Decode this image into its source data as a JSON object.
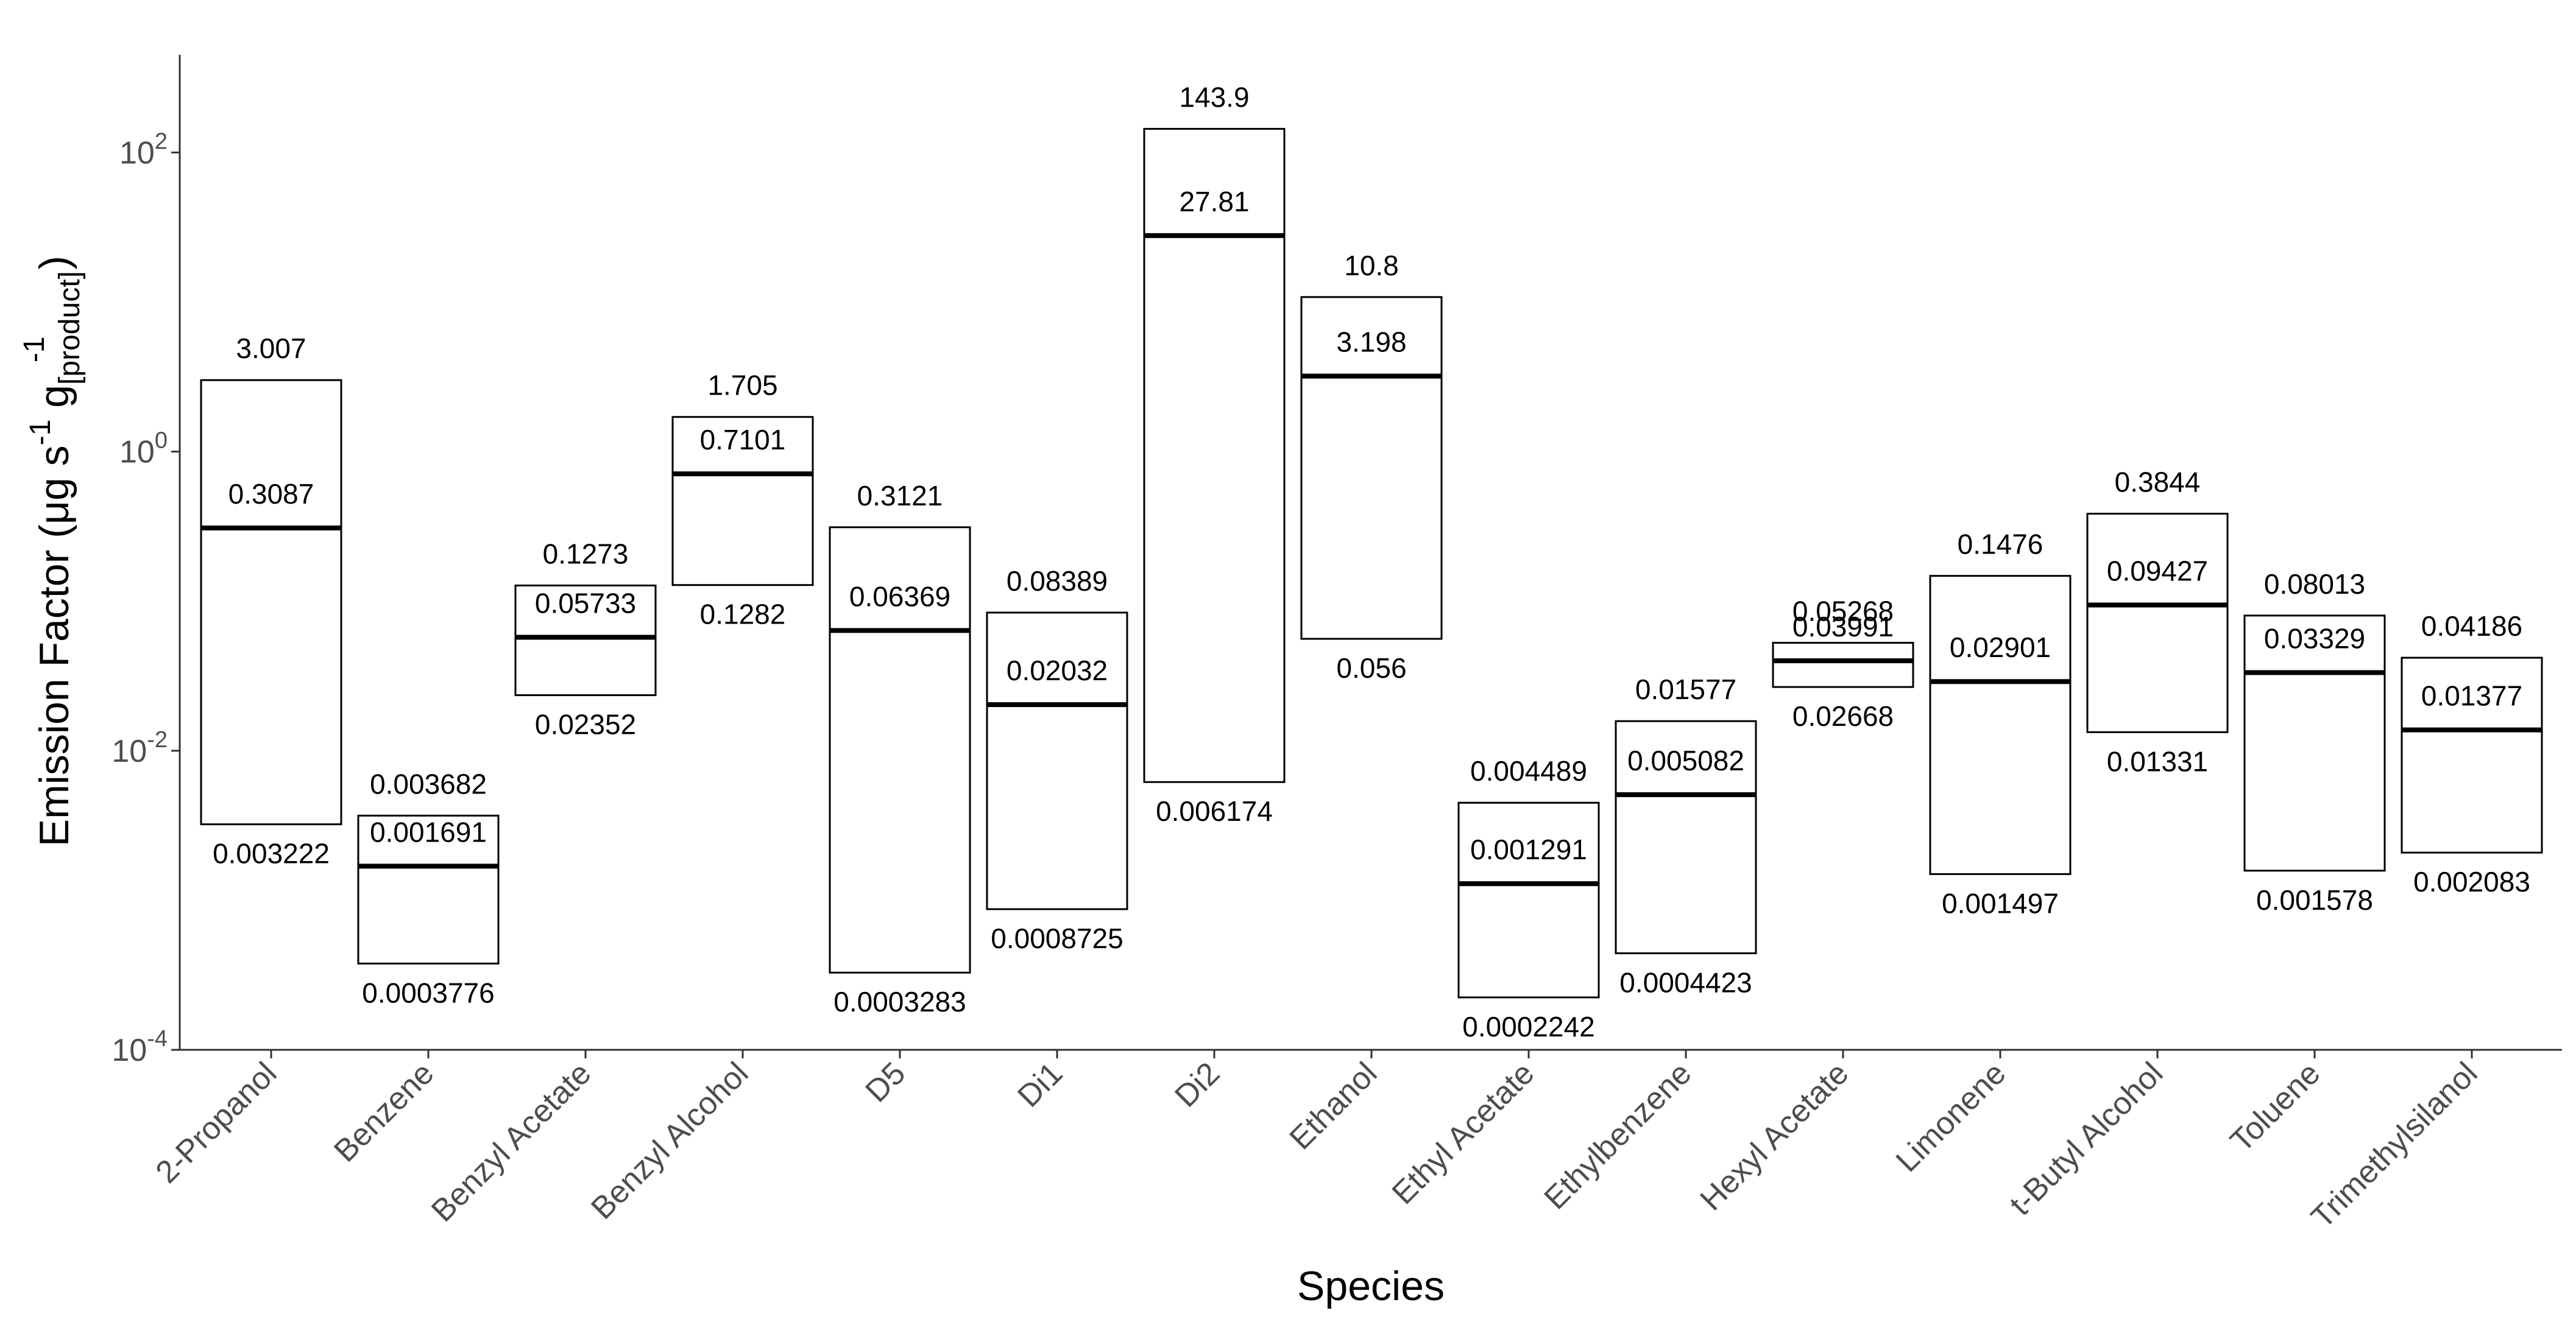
{
  "chart_data": {
    "type": "box",
    "title": "",
    "xlabel": "Species",
    "ylabel": {
      "main": "Emission Factor (",
      "mu": "μ",
      "g1": "g s",
      "exp1": "-1",
      "g2": "g",
      "sub": "[product]",
      "exp2": "-1",
      "close": ")"
    },
    "y_scale": "log10",
    "ylim": [
      0.0001,
      450
    ],
    "y_ticks": [
      {
        "value": 0.0001,
        "base": "10",
        "exp": "-4"
      },
      {
        "value": 0.01,
        "base": "10",
        "exp": "-2"
      },
      {
        "value": 1,
        "base": "10",
        "exp": "0"
      },
      {
        "value": 100,
        "base": "10",
        "exp": "2"
      }
    ],
    "series": [
      {
        "category": "2-Propanol",
        "min": 0.003222,
        "median": 0.3087,
        "max": 3.007,
        "labels": {
          "min": "0.003222",
          "median": "0.3087",
          "max": "3.007"
        }
      },
      {
        "category": "Benzene",
        "min": 0.0003776,
        "median": 0.001691,
        "max": 0.003682,
        "labels": {
          "min": "0.0003776",
          "median": "0.001691",
          "max": "0.003682"
        }
      },
      {
        "category": "Benzyl Acetate",
        "min": 0.02352,
        "median": 0.05733,
        "max": 0.1273,
        "labels": {
          "min": "0.02352",
          "median": "0.05733",
          "max": "0.1273"
        }
      },
      {
        "category": "Benzyl Alcohol",
        "min": 0.1282,
        "median": 0.7101,
        "max": 1.705,
        "labels": {
          "min": "0.1282",
          "median": "0.7101",
          "max": "1.705"
        }
      },
      {
        "category": "D5",
        "min": 0.0003283,
        "median": 0.06369,
        "max": 0.3121,
        "labels": {
          "min": "0.0003283",
          "median": "0.06369",
          "max": "0.3121"
        }
      },
      {
        "category": "Di1",
        "min": 0.0008725,
        "median": 0.02032,
        "max": 0.08389,
        "labels": {
          "min": "0.0008725",
          "median": "0.02032",
          "max": "0.08389"
        }
      },
      {
        "category": "Di2",
        "min": 0.006174,
        "median": 27.81,
        "max": 143.9,
        "labels": {
          "min": "0.006174",
          "median": "27.81",
          "max": "143.9"
        }
      },
      {
        "category": "Ethanol",
        "min": 0.056,
        "median": 3.198,
        "max": 10.8,
        "labels": {
          "min": "0.056",
          "median": "3.198",
          "max": "10.8"
        }
      },
      {
        "category": "Ethyl Acetate",
        "min": 0.0002242,
        "median": 0.001291,
        "max": 0.004489,
        "labels": {
          "min": "0.0002242",
          "median": "0.001291",
          "max": "0.004489"
        }
      },
      {
        "category": "Ethylbenzene",
        "min": 0.0004423,
        "median": 0.005082,
        "max": 0.01577,
        "labels": {
          "min": "0.0004423",
          "median": "0.005082",
          "max": "0.01577"
        }
      },
      {
        "category": "Hexyl Acetate",
        "min": 0.02668,
        "median": 0.03991,
        "max": 0.05268,
        "labels": {
          "min": "0.02668",
          "median": "0.03991",
          "max": "0.05268"
        }
      },
      {
        "category": "Limonene",
        "min": 0.001497,
        "median": 0.02901,
        "max": 0.1476,
        "labels": {
          "min": "0.001497",
          "median": "0.02901",
          "max": "0.1476"
        }
      },
      {
        "category": "t-Butyl Alcohol",
        "min": 0.01331,
        "median": 0.09427,
        "max": 0.3844,
        "labels": {
          "min": "0.01331",
          "median": "0.09427",
          "max": "0.3844"
        }
      },
      {
        "category": "Toluene",
        "min": 0.001578,
        "median": 0.03329,
        "max": 0.08013,
        "labels": {
          "min": "0.001578",
          "median": "0.03329",
          "max": "0.08013"
        }
      },
      {
        "category": "Trimethylsilanol",
        "min": 0.002083,
        "median": 0.01377,
        "max": 0.04186,
        "labels": {
          "min": "0.002083",
          "median": "0.01377",
          "max": "0.04186"
        }
      }
    ]
  }
}
